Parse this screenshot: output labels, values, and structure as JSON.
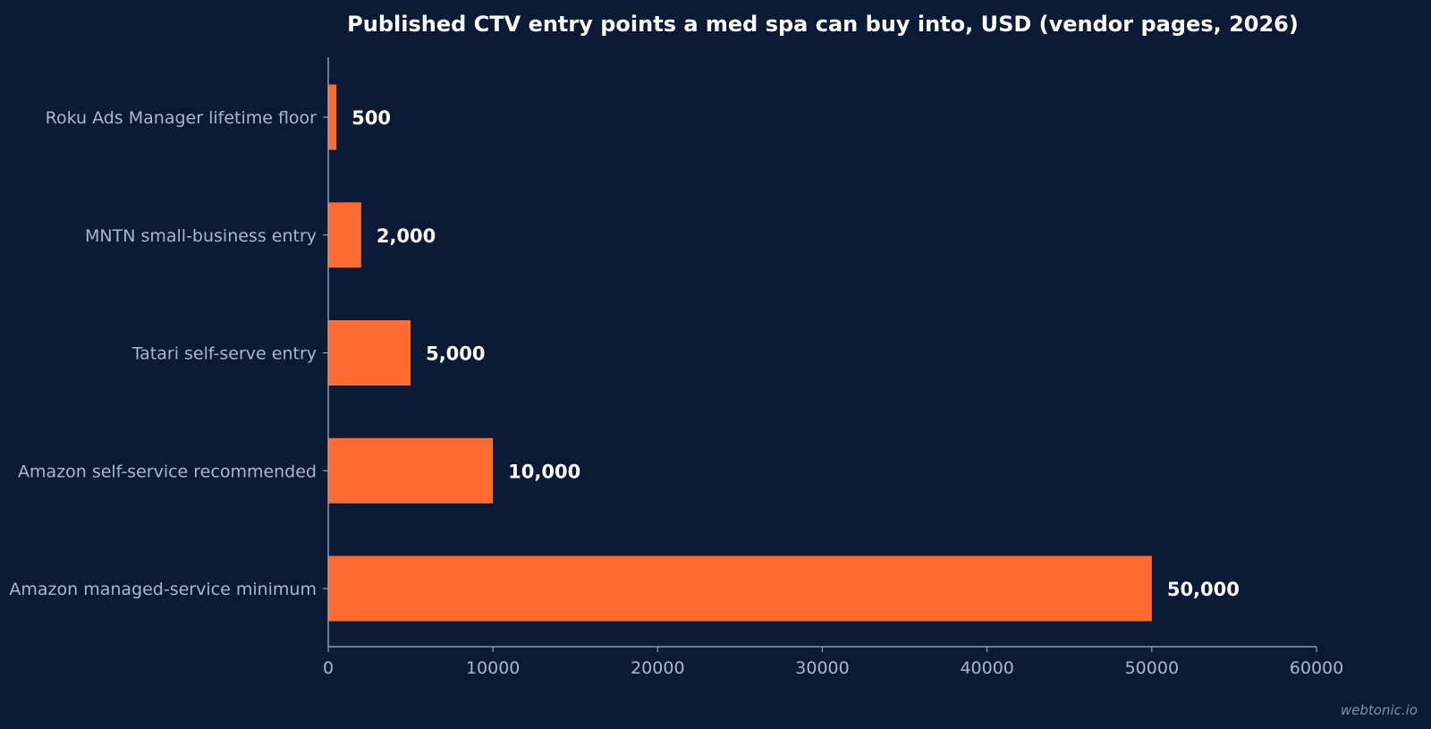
{
  "chart_data": {
    "type": "bar",
    "orientation": "horizontal",
    "title": "Published CTV entry points a med spa can buy into, USD (vendor pages, 2026)",
    "xlabel": "",
    "ylabel": "",
    "categories": [
      "Roku Ads Manager lifetime floor",
      "MNTN small-business entry",
      "Tatari self-serve entry",
      "Amazon self-service recommended",
      "Amazon managed-service minimum"
    ],
    "values": [
      500,
      2000,
      5000,
      10000,
      50000
    ],
    "value_labels": [
      "500",
      "2,000",
      "5,000",
      "10,000",
      "50,000"
    ],
    "xlim": [
      0,
      60000
    ],
    "xticks": [
      0,
      10000,
      20000,
      30000,
      40000,
      50000,
      60000
    ],
    "xtick_labels": [
      "0",
      "10000",
      "20000",
      "30000",
      "40000",
      "50000",
      "60000"
    ],
    "grid": false,
    "legend": "none",
    "colors": {
      "background": "#0c1b35",
      "bar": "#ff6b2e",
      "axis": "#a9b6cc",
      "text": "#ffffff",
      "muted_text": "#a9b6cc"
    }
  },
  "footer": {
    "watermark": "webtonic.io"
  }
}
